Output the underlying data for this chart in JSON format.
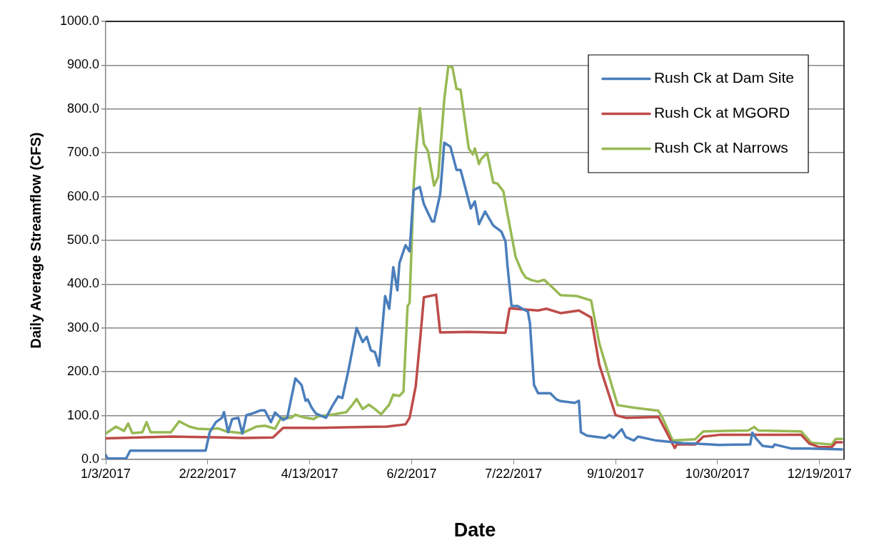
{
  "chart_data": {
    "type": "line",
    "xlabel": "Date",
    "ylabel": "Daily Average Streamflow (CFS)",
    "xlim": [
      "2017-01-03",
      "2017-12-31"
    ],
    "xticks": [
      {
        "value": "2017-01-03",
        "label": "1/3/2017"
      },
      {
        "value": "2017-02-22",
        "label": "2/22/2017"
      },
      {
        "value": "2017-04-13",
        "label": "4/13/2017"
      },
      {
        "value": "2017-06-02",
        "label": "6/2/2017"
      },
      {
        "value": "2017-07-22",
        "label": "7/22/2017"
      },
      {
        "value": "2017-09-10",
        "label": "9/10/2017"
      },
      {
        "value": "2017-10-30",
        "label": "10/30/2017"
      },
      {
        "value": "2017-12-19",
        "label": "12/19/2017"
      }
    ],
    "ylim": [
      0,
      1000
    ],
    "yticks": [
      {
        "value": 0,
        "label": "0.0"
      },
      {
        "value": 100,
        "label": "100.0"
      },
      {
        "value": 200,
        "label": "200.0"
      },
      {
        "value": 300,
        "label": "300.0"
      },
      {
        "value": 400,
        "label": "400.0"
      },
      {
        "value": 500,
        "label": "500.0"
      },
      {
        "value": 600,
        "label": "600.0"
      },
      {
        "value": 700,
        "label": "700.0"
      },
      {
        "value": 800,
        "label": "800.0"
      },
      {
        "value": 900,
        "label": "900.0"
      },
      {
        "value": 1000,
        "label": "1000.0"
      }
    ],
    "grid": "y",
    "legend": "top right",
    "marker": "none",
    "line_style": "solid",
    "series": [
      {
        "name": "Rush Ck at Dam Site",
        "color": "#4a7ebb",
        "x": [
          "2017-01-03",
          "2017-01-04",
          "2017-01-13",
          "2017-01-15",
          "2017-02-21",
          "2017-02-23",
          "2017-02-26",
          "2017-03-01",
          "2017-03-02",
          "2017-03-04",
          "2017-03-06",
          "2017-03-09",
          "2017-03-11",
          "2017-03-13",
          "2017-03-16",
          "2017-03-20",
          "2017-03-22",
          "2017-03-25",
          "2017-03-27",
          "2017-03-31",
          "2017-04-02",
          "2017-04-06",
          "2017-04-09",
          "2017-04-11",
          "2017-04-12",
          "2017-04-14",
          "2017-04-16",
          "2017-04-21",
          "2017-04-24",
          "2017-04-27",
          "2017-04-29",
          "2017-05-02",
          "2017-05-06",
          "2017-05-09",
          "2017-05-11",
          "2017-05-13",
          "2017-05-15",
          "2017-05-17",
          "2017-05-20",
          "2017-05-22",
          "2017-05-24",
          "2017-05-26",
          "2017-05-27",
          "2017-05-30",
          "2017-06-01",
          "2017-06-03",
          "2017-06-06",
          "2017-06-08",
          "2017-06-12",
          "2017-06-13",
          "2017-06-16",
          "2017-06-18",
          "2017-06-21",
          "2017-06-24",
          "2017-06-26",
          "2017-07-01",
          "2017-07-03",
          "2017-07-05",
          "2017-07-08",
          "2017-07-12",
          "2017-07-16",
          "2017-07-18",
          "2017-07-19",
          "2017-07-21",
          "2017-07-24",
          "2017-07-29",
          "2017-07-30",
          "2017-08-01",
          "2017-08-03",
          "2017-08-09",
          "2017-08-12",
          "2017-08-14",
          "2017-08-21",
          "2017-08-23",
          "2017-08-24",
          "2017-08-27",
          "2017-09-05",
          "2017-09-07",
          "2017-09-09",
          "2017-09-13",
          "2017-09-15",
          "2017-09-19",
          "2017-09-21",
          "2017-09-26",
          "2017-09-30",
          "2017-10-13",
          "2017-10-20",
          "2017-10-31",
          "2017-11-15",
          "2017-11-16",
          "2017-11-18",
          "2017-11-21",
          "2017-11-26",
          "2017-11-27",
          "2017-12-05",
          "2017-12-14",
          "2017-12-30"
        ],
        "values": [
          10,
          2,
          2,
          20,
          20,
          62,
          85,
          95,
          108,
          62,
          92,
          95,
          59,
          101,
          105,
          112,
          112,
          85,
          107,
          90,
          95,
          185,
          170,
          134,
          137,
          118,
          105,
          95,
          121,
          144,
          140,
          203,
          300,
          268,
          280,
          249,
          245,
          214,
          373,
          344,
          439,
          386,
          448,
          489,
          475,
          615,
          622,
          583,
          543,
          543,
          606,
          723,
          714,
          661,
          661,
          573,
          589,
          537,
          566,
          534,
          520,
          498,
          442,
          350,
          350,
          337,
          311,
          170,
          151,
          151,
          137,
          133,
          129,
          134,
          62,
          54,
          49,
          56,
          49,
          69,
          51,
          43,
          52,
          47,
          43,
          37,
          36,
          33,
          34,
          61,
          47,
          31,
          28,
          34,
          25,
          25,
          23
        ]
      },
      {
        "name": "Rush Ck at MGORD",
        "color": "#be4b48",
        "x": [
          "2017-01-03",
          "2017-02-04",
          "2017-03-02",
          "2017-03-11",
          "2017-03-26",
          "2017-03-31",
          "2017-04-18",
          "2017-05-21",
          "2017-05-30",
          "2017-06-01",
          "2017-06-04",
          "2017-06-06",
          "2017-06-08",
          "2017-06-14",
          "2017-06-16",
          "2017-06-30",
          "2017-07-18",
          "2017-07-20",
          "2017-08-03",
          "2017-08-07",
          "2017-08-14",
          "2017-08-23",
          "2017-08-29",
          "2017-09-02",
          "2017-09-10",
          "2017-09-15",
          "2017-10-01",
          "2017-10-05",
          "2017-10-09",
          "2017-10-10",
          "2017-10-19",
          "2017-10-23",
          "2017-10-31",
          "2017-12-10",
          "2017-12-14",
          "2017-12-19",
          "2017-12-25",
          "2017-12-27",
          "2017-12-30"
        ],
        "values": [
          48,
          52,
          50,
          49,
          50,
          72,
          72,
          75,
          80,
          95,
          167,
          265,
          370,
          376,
          290,
          291,
          289,
          345,
          340,
          344,
          334,
          340,
          324,
          216,
          101,
          95,
          97,
          62,
          26,
          34,
          34,
          52,
          56,
          56,
          36,
          28,
          28,
          39,
          39
        ]
      },
      {
        "name": "Rush Ck at Narrows",
        "color": "#98b954",
        "x": [
          "2017-01-03",
          "2017-01-08",
          "2017-01-12",
          "2017-01-14",
          "2017-01-16",
          "2017-01-21",
          "2017-01-23",
          "2017-01-25",
          "2017-02-04",
          "2017-02-08",
          "2017-02-13",
          "2017-02-17",
          "2017-02-23",
          "2017-02-27",
          "2017-03-03",
          "2017-03-11",
          "2017-03-18",
          "2017-03-22",
          "2017-03-27",
          "2017-03-30",
          "2017-04-04",
          "2017-04-06",
          "2017-04-10",
          "2017-04-15",
          "2017-04-17",
          "2017-04-25",
          "2017-05-01",
          "2017-05-04",
          "2017-05-06",
          "2017-05-09",
          "2017-05-12",
          "2017-05-15",
          "2017-05-18",
          "2017-05-22",
          "2017-05-24",
          "2017-05-27",
          "2017-05-29",
          "2017-05-31",
          "2017-06-01",
          "2017-06-03",
          "2017-06-04",
          "2017-06-06",
          "2017-06-08",
          "2017-06-10",
          "2017-06-13",
          "2017-06-15",
          "2017-06-18",
          "2017-06-20",
          "2017-06-22",
          "2017-06-24",
          "2017-06-26",
          "2017-06-30",
          "2017-07-02",
          "2017-07-03",
          "2017-07-05",
          "2017-07-06",
          "2017-07-09",
          "2017-07-12",
          "2017-07-14",
          "2017-07-17",
          "2017-07-19",
          "2017-07-23",
          "2017-07-26",
          "2017-07-28",
          "2017-07-31",
          "2017-08-03",
          "2017-08-06",
          "2017-08-10",
          "2017-08-14",
          "2017-08-22",
          "2017-08-29",
          "2017-09-02",
          "2017-09-11",
          "2017-09-19",
          "2017-10-01",
          "2017-10-03",
          "2017-10-08",
          "2017-10-19",
          "2017-10-23",
          "2017-11-14",
          "2017-11-17",
          "2017-11-19",
          "2017-12-10",
          "2017-12-15",
          "2017-12-25",
          "2017-12-27",
          "2017-12-30"
        ],
        "values": [
          59,
          75,
          65,
          82,
          60,
          62,
          85,
          62,
          62,
          87,
          75,
          70,
          69,
          71,
          64,
          60,
          75,
          77,
          70,
          95,
          95,
          102,
          96,
          92,
          98,
          103,
          108,
          125,
          138,
          115,
          125,
          115,
          103,
          125,
          148,
          145,
          155,
          350,
          357,
          625,
          694,
          802,
          720,
          704,
          625,
          645,
          822,
          898,
          895,
          846,
          844,
          710,
          696,
          710,
          674,
          685,
          700,
          632,
          630,
          612,
          560,
          462,
          429,
          415,
          409,
          406,
          410,
          393,
          375,
          373,
          363,
          265,
          124,
          118,
          111,
          95,
          43,
          46,
          64,
          66,
          74,
          66,
          64,
          38,
          34,
          47,
          47
        ]
      }
    ]
  }
}
